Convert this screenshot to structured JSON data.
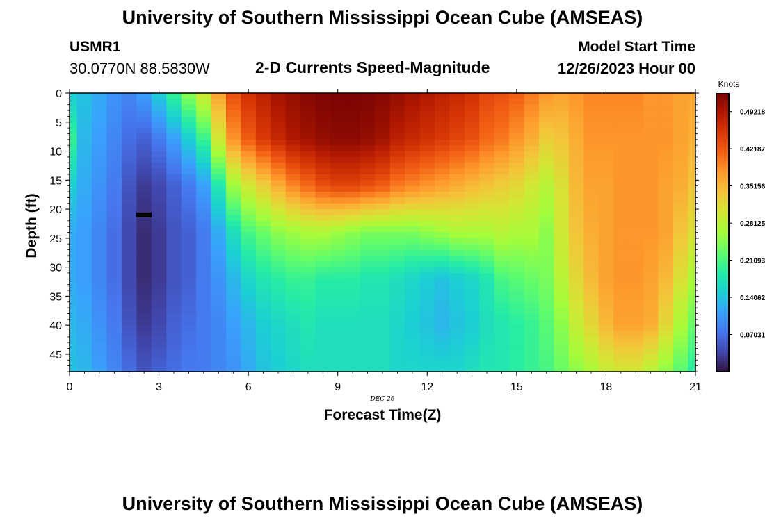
{
  "header": {
    "title": "University of Southern Mississippi Ocean Cube (AMSEAS)",
    "station": "USMR1",
    "coords": "30.0770N  88.5830W",
    "subtitle": "2-D Currents Speed-Magnitude",
    "start_label": "Model Start Time",
    "start_value": "12/26/2023 Hour 00"
  },
  "footer": {
    "title": "University of Southern Mississippi Ocean Cube (AMSEAS)"
  },
  "chart_data": {
    "type": "heatmap",
    "xlabel": "Forecast Time(Z)",
    "ylabel": "Depth (ft)",
    "date_label": "DEC 26",
    "xlim": [
      0,
      21
    ],
    "ylim": [
      0,
      48
    ],
    "x_ticks": [
      0,
      3,
      6,
      9,
      12,
      15,
      18,
      21
    ],
    "y_ticks": [
      0,
      5,
      10,
      15,
      20,
      25,
      30,
      35,
      40,
      45
    ],
    "colorbar": {
      "label": "Knots",
      "min": 0,
      "max": 0.5273,
      "ticks": [
        "0.07031",
        "0.14062",
        "0.21093",
        "0.28125",
        "0.35156",
        "0.42187",
        "0.49218"
      ],
      "tick_values": [
        0.07031,
        0.14062,
        0.21093,
        0.28125,
        0.35156,
        0.42187,
        0.49218
      ],
      "colors": [
        "#30123b",
        "#4145ab",
        "#4675ed",
        "#39a2fc",
        "#1bcfd4",
        "#24eca6",
        "#61fc6c",
        "#a4fc3b",
        "#d1e834",
        "#f3c63a",
        "#fe9b2d",
        "#f36315",
        "#d93806",
        "#b11901",
        "#7a0402"
      ]
    },
    "marker": {
      "time": 2.5,
      "depth": 21,
      "label": "water depth marker"
    },
    "series": [
      {
        "name": "speed_knots_by_time",
        "times": [
          0,
          0.5,
          1,
          1.5,
          2,
          2.5,
          3,
          3.5,
          4,
          4.5,
          5,
          5.5,
          6,
          6.5,
          7,
          7.5,
          8,
          8.5,
          9,
          9.5,
          10,
          10.5,
          11,
          11.5,
          12,
          12.5,
          13,
          13.5,
          14,
          14.5,
          15,
          15.5,
          16,
          16.5,
          17,
          17.5,
          18,
          18.5,
          19,
          19.5,
          20,
          20.5,
          21
        ],
        "depths": [
          0,
          8,
          16,
          24,
          32,
          40,
          48
        ],
        "values": [
          [
            0.15,
            0.2,
            0.15,
            0.12,
            0.12,
            0.13,
            0.14
          ],
          [
            0.14,
            0.13,
            0.12,
            0.11,
            0.11,
            0.12,
            0.13
          ],
          [
            0.12,
            0.11,
            0.1,
            0.09,
            0.09,
            0.1,
            0.11
          ],
          [
            0.1,
            0.09,
            0.08,
            0.07,
            0.07,
            0.08,
            0.09
          ],
          [
            0.09,
            0.07,
            0.05,
            0.04,
            0.04,
            0.05,
            0.07
          ],
          [
            0.11,
            0.06,
            0.03,
            0.02,
            0.02,
            0.03,
            0.05
          ],
          [
            0.15,
            0.08,
            0.04,
            0.03,
            0.03,
            0.04,
            0.06
          ],
          [
            0.2,
            0.11,
            0.06,
            0.05,
            0.05,
            0.06,
            0.07
          ],
          [
            0.25,
            0.15,
            0.08,
            0.06,
            0.06,
            0.07,
            0.08
          ],
          [
            0.3,
            0.2,
            0.11,
            0.08,
            0.08,
            0.08,
            0.08
          ],
          [
            0.37,
            0.3,
            0.18,
            0.12,
            0.1,
            0.09,
            0.09
          ],
          [
            0.43,
            0.38,
            0.26,
            0.17,
            0.13,
            0.11,
            0.1
          ],
          [
            0.46,
            0.42,
            0.3,
            0.21,
            0.16,
            0.13,
            0.12
          ],
          [
            0.48,
            0.45,
            0.33,
            0.23,
            0.18,
            0.15,
            0.14
          ],
          [
            0.5,
            0.47,
            0.36,
            0.25,
            0.19,
            0.16,
            0.15
          ],
          [
            0.51,
            0.49,
            0.39,
            0.26,
            0.2,
            0.17,
            0.16
          ],
          [
            0.52,
            0.5,
            0.41,
            0.27,
            0.2,
            0.18,
            0.17
          ],
          [
            0.525,
            0.51,
            0.43,
            0.27,
            0.19,
            0.17,
            0.17
          ],
          [
            0.527,
            0.515,
            0.44,
            0.26,
            0.19,
            0.17,
            0.17
          ],
          [
            0.527,
            0.515,
            0.44,
            0.25,
            0.19,
            0.17,
            0.17
          ],
          [
            0.525,
            0.51,
            0.43,
            0.24,
            0.18,
            0.17,
            0.17
          ],
          [
            0.52,
            0.5,
            0.42,
            0.24,
            0.18,
            0.17,
            0.17
          ],
          [
            0.51,
            0.48,
            0.4,
            0.24,
            0.17,
            0.16,
            0.16
          ],
          [
            0.5,
            0.47,
            0.39,
            0.24,
            0.16,
            0.15,
            0.16
          ],
          [
            0.49,
            0.46,
            0.38,
            0.25,
            0.15,
            0.14,
            0.16
          ],
          [
            0.48,
            0.45,
            0.37,
            0.26,
            0.14,
            0.13,
            0.16
          ],
          [
            0.47,
            0.44,
            0.36,
            0.27,
            0.15,
            0.14,
            0.16
          ],
          [
            0.46,
            0.43,
            0.35,
            0.27,
            0.16,
            0.15,
            0.17
          ],
          [
            0.44,
            0.41,
            0.34,
            0.27,
            0.18,
            0.17,
            0.18
          ],
          [
            0.43,
            0.4,
            0.33,
            0.28,
            0.21,
            0.18,
            0.18
          ],
          [
            0.42,
            0.38,
            0.32,
            0.27,
            0.22,
            0.19,
            0.19
          ],
          [
            0.4,
            0.36,
            0.3,
            0.27,
            0.23,
            0.2,
            0.2
          ],
          [
            0.38,
            0.33,
            0.28,
            0.25,
            0.24,
            0.22,
            0.21
          ],
          [
            0.37,
            0.34,
            0.31,
            0.3,
            0.28,
            0.25,
            0.23
          ],
          [
            0.38,
            0.36,
            0.35,
            0.34,
            0.32,
            0.29,
            0.25
          ],
          [
            0.39,
            0.38,
            0.37,
            0.36,
            0.35,
            0.32,
            0.27
          ],
          [
            0.39,
            0.38,
            0.37,
            0.37,
            0.37,
            0.35,
            0.29
          ],
          [
            0.39,
            0.38,
            0.38,
            0.38,
            0.38,
            0.37,
            0.3
          ],
          [
            0.39,
            0.38,
            0.38,
            0.38,
            0.38,
            0.37,
            0.3
          ],
          [
            0.38,
            0.38,
            0.38,
            0.38,
            0.37,
            0.36,
            0.28
          ],
          [
            0.38,
            0.38,
            0.37,
            0.37,
            0.35,
            0.32,
            0.25
          ],
          [
            0.37,
            0.37,
            0.36,
            0.34,
            0.31,
            0.27,
            0.22
          ],
          [
            0.37,
            0.36,
            0.34,
            0.31,
            0.27,
            0.23,
            0.19
          ]
        ]
      }
    ]
  }
}
